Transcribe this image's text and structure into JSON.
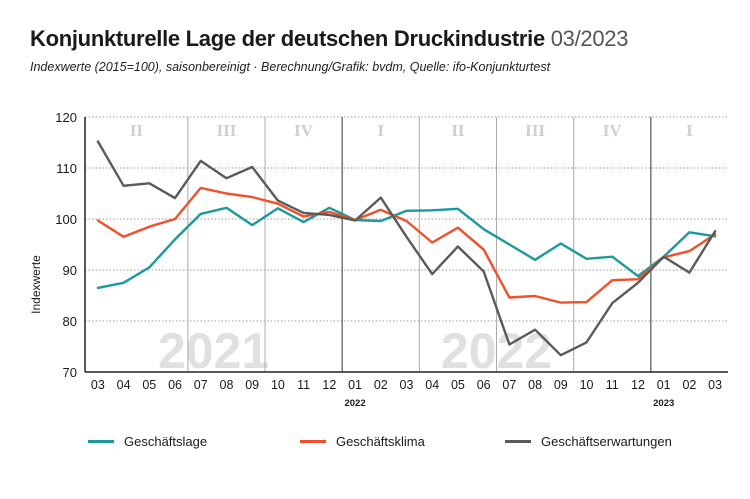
{
  "header": {
    "title": "Konjunkturelle Lage der deutschen Druckindustrie",
    "title_date": "03/2023",
    "subtitle": "Indexwerte (2015=100), saisonbereinigt · Berechnung/Grafik: bvdm, Quelle: ifo-Konjunkturtest"
  },
  "chart_data": {
    "type": "line",
    "title": "Konjunkturelle Lage der deutschen Druckindustrie 03/2023",
    "ylabel": "Indexwerte",
    "ylim": [
      70,
      120
    ],
    "yticks": [
      70,
      80,
      90,
      100,
      110,
      120
    ],
    "grid": true,
    "legend_position": "bottom",
    "categories": [
      "03",
      "04",
      "05",
      "06",
      "07",
      "08",
      "09",
      "10",
      "11",
      "12",
      "01",
      "02",
      "03",
      "04",
      "05",
      "06",
      "07",
      "08",
      "09",
      "10",
      "11",
      "12",
      "01",
      "02",
      "03"
    ],
    "year_labels": [
      {
        "label": "2022",
        "index": 10
      },
      {
        "label": "2023",
        "index": 22
      }
    ],
    "year_watermarks": [
      {
        "label": "2021",
        "from": 0,
        "to": 9
      },
      {
        "label": "2022",
        "from": 10,
        "to": 21
      }
    ],
    "quarters": [
      {
        "label": "II",
        "from": 0,
        "to": 3
      },
      {
        "label": "III",
        "from": 4,
        "to": 6
      },
      {
        "label": "IV",
        "from": 7,
        "to": 9
      },
      {
        "label": "I",
        "from": 10,
        "to": 12
      },
      {
        "label": "II",
        "from": 13,
        "to": 15
      },
      {
        "label": "III",
        "from": 16,
        "to": 18
      },
      {
        "label": "IV",
        "from": 19,
        "to": 21
      },
      {
        "label": "I",
        "from": 22,
        "to": 24
      }
    ],
    "series": [
      {
        "name": "Geschäftslage",
        "color": "#1a9a9a",
        "values": [
          86.5,
          87.5,
          90.5,
          96,
          101,
          102.2,
          98.8,
          102.1,
          99.4,
          102.2,
          99.8,
          99.6,
          101.6,
          101.7,
          102,
          98,
          95,
          92,
          95.2,
          92.2,
          92.6,
          88.8,
          92.6,
          97.4,
          96.6
        ]
      },
      {
        "name": "Geschäftsklima",
        "color": "#f0502a",
        "values": [
          99.7,
          96.5,
          98.5,
          100,
          106.1,
          105,
          104.3,
          103,
          100.5,
          101.4,
          99.8,
          101.8,
          99.6,
          95.4,
          98.3,
          94,
          84.6,
          84.9,
          83.6,
          83.7,
          88,
          88.2,
          92.5,
          93.7,
          97
        ]
      },
      {
        "name": "Geschäftserwartungen",
        "color": "#5a5a5a",
        "values": [
          115.2,
          106.5,
          107,
          104.1,
          111.4,
          108,
          110.2,
          103.6,
          101.2,
          100.8,
          99.7,
          104.2,
          96.5,
          89.2,
          94.6,
          89.7,
          75.4,
          78.3,
          73.3,
          75.8,
          83.5,
          87.5,
          92.6,
          89.5,
          97.6
        ]
      }
    ]
  }
}
